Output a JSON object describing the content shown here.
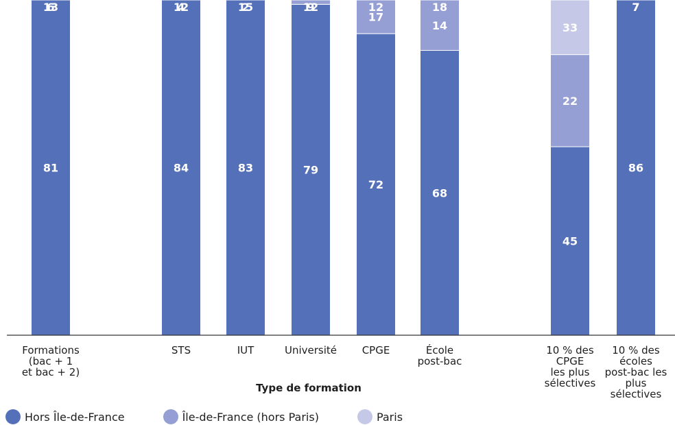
{
  "chart_data": {
    "type": "bar",
    "stacked": true,
    "categories": [
      "Formations\n(bac + 1\net bac + 2)",
      "STS",
      "IUT",
      "Université",
      "CPGE",
      "École\npost-bac",
      "10 % des\nCPGE\nles plus\nsélectives",
      "10 % des\nécoles\npost-bac les\nplus\nsélectives"
    ],
    "series": [
      {
        "name": "Hors Île-de-France",
        "color": "#5470b8",
        "values": [
          81,
          84,
          83,
          79,
          72,
          68,
          45,
          86
        ]
      },
      {
        "name": "Île-de-France (hors Paris)",
        "color": "#959fd3",
        "values": [
          13,
          12,
          15,
          12,
          17,
          14,
          22,
          7
        ]
      },
      {
        "name": "Paris",
        "color": "#c5c9e7",
        "values": [
          6,
          4,
          2,
          9,
          12,
          18,
          33,
          7
        ]
      }
    ],
    "xlabel": "Type de formation",
    "ylabel": "",
    "ylim": [
      0,
      100
    ],
    "grid": false,
    "legend_position": "bottom-left"
  }
}
